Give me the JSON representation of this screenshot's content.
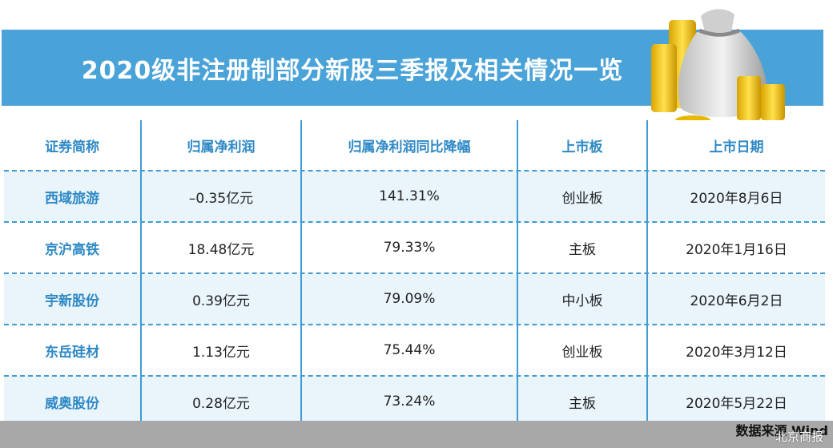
{
  "title": "2020级非注册制部分新股三季报及相关情况一览",
  "headers": [
    "证券简称",
    "归属净利润",
    "归属净利润同比降幅",
    "上市板",
    "上市日期"
  ],
  "rows": [
    {
      "name": "西域旅游",
      "profit": "–0.35亿元",
      "decline": "141.31%",
      "board": "创业板",
      "date": "2020年8月6日"
    },
    {
      "name": "京沪高铁",
      "profit": "18.48亿元",
      "decline": "79.33%",
      "board": "主板",
      "date": "2020年1月16日"
    },
    {
      "name": "宇新股份",
      "profit": "0.39亿元",
      "decline": "79.09%",
      "board": "中小板",
      "date": "2020年6月2日"
    },
    {
      "name": "东岳硅材",
      "profit": "1.13亿元",
      "decline": "75.44%",
      "board": "创业板",
      "date": "2020年3月12日"
    },
    {
      "name": "威奥股份",
      "profit": "0.28亿元",
      "decline": "73.24%",
      "board": "主板",
      "date": "2020年5月22日"
    }
  ],
  "source": "数据来源 Wind",
  "watermark": "北京商报",
  "colors": {
    "banner": "#4aa3d8",
    "accent": "#2e89c6",
    "alt_row": "#e9f4fb",
    "footer": "#a8a8a8"
  },
  "icons": {
    "illustration": "money-bag-coins-icon"
  }
}
